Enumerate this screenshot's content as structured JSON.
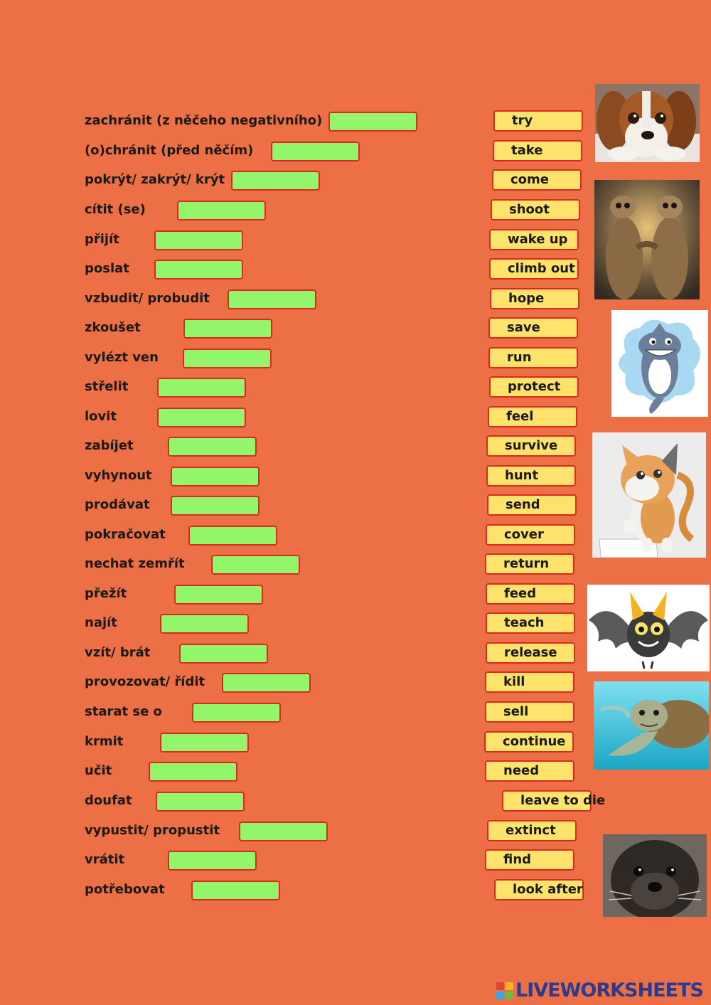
{
  "czech_words": [
    "zachránit (z něčeho negativního)",
    "(o)chránit (před něčím)",
    "pokrýt/ zakrýt/ krýt",
    "cítit (se)",
    "přijít",
    "poslat",
    "vzbudit/ probudit",
    "zkoušet",
    "vylézt ven",
    "střelit",
    "lovit",
    "zabíjet",
    "vyhynout",
    "prodávat",
    "pokračovat",
    "nechat zemřít",
    "přežít",
    "najít",
    "vzít/ brát",
    "provozovat/ řídit",
    "starat se o",
    "krmit",
    "učit",
    "doufat",
    "vypustit/ propustit",
    "vrátit",
    "potřebovat"
  ],
  "english_words": [
    "try",
    "take",
    "come",
    "shoot",
    "wake up",
    "climb out",
    "hope",
    "save",
    "run",
    "protect",
    "feel",
    "survive",
    "hunt",
    "send",
    "cover",
    "return",
    "feed",
    "teach",
    "release",
    "kill",
    "sell",
    "continue",
    "need",
    "leave to die",
    "extinct",
    "find",
    "look after"
  ],
  "images": [
    "dog",
    "meerkats",
    "shark",
    "cat",
    "bat",
    "turtle",
    "otter"
  ],
  "brand": {
    "logo_text": "LIVEWORKSHEETS",
    "logo_mark": "LIVE"
  },
  "colors": {
    "background": "#ec6f45",
    "drop_box": "#92f56a",
    "word_box": "#fde36b",
    "border": "#d92a22"
  }
}
